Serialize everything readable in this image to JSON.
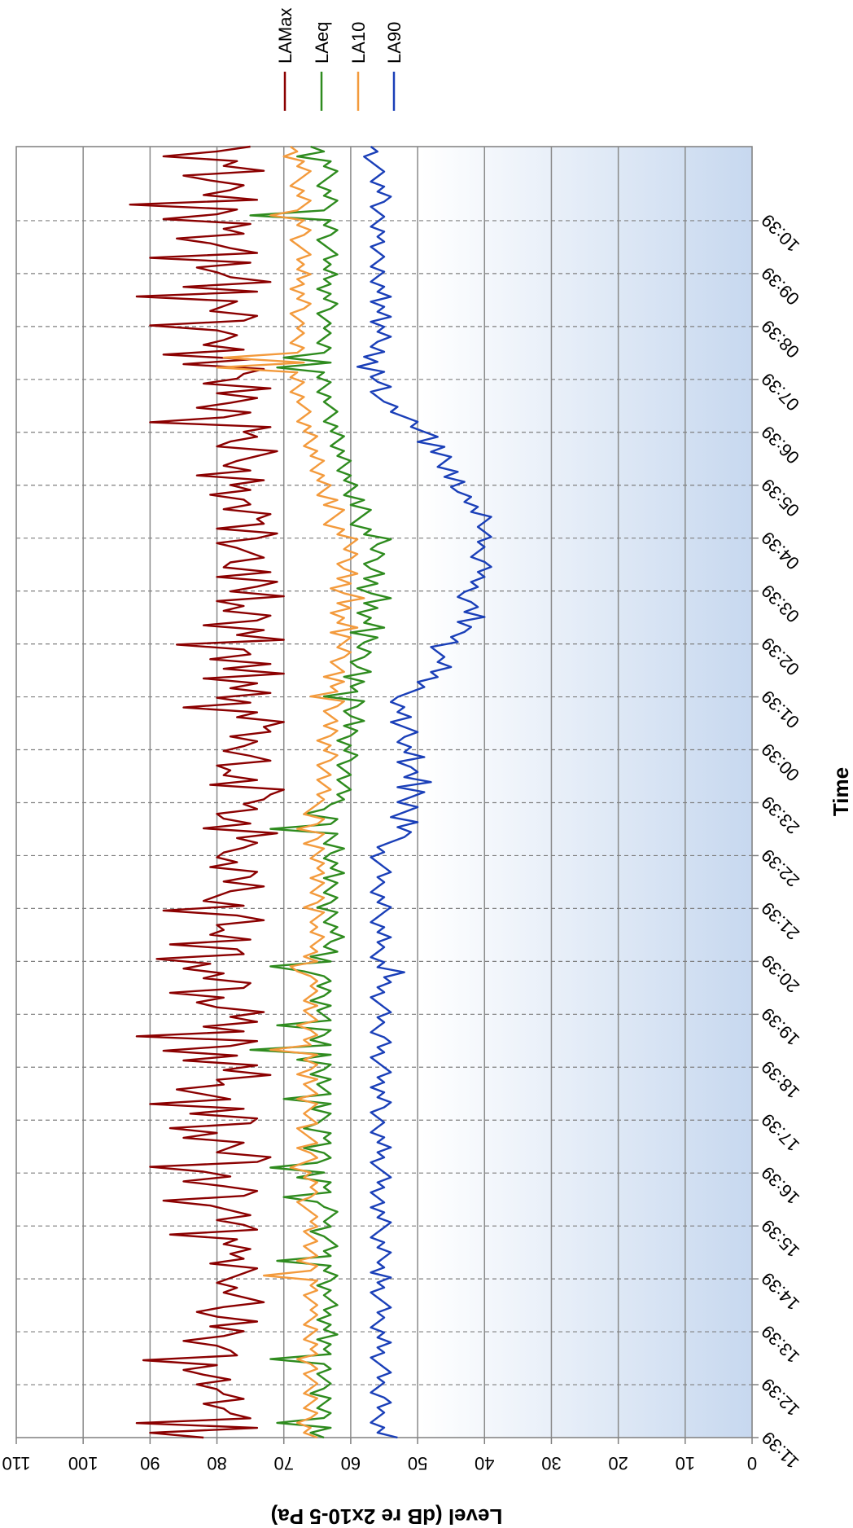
{
  "chart_data": {
    "type": "line",
    "orientation": "rotated-180",
    "xlabel": "Time",
    "ylabel": "Level (dB re 2x10-5 Pa)",
    "ylim": [
      0,
      110
    ],
    "yticks": [
      0,
      10,
      20,
      30,
      40,
      50,
      60,
      70,
      80,
      90,
      100,
      110
    ],
    "x_ticks": [
      "11:39",
      "12:39",
      "13:39",
      "14:39",
      "15:39",
      "16:39",
      "17:39",
      "18:39",
      "19:39",
      "20:39",
      "21:39",
      "22:39",
      "23:39",
      "00:39",
      "01:39",
      "02:39",
      "03:39",
      "04:39",
      "05:39",
      "06:39",
      "07:39",
      "08:39",
      "09:39",
      "10:39"
    ],
    "grid": true,
    "legend": "top-right",
    "series": [
      {
        "name": "LAMax",
        "color": "#8b0000",
        "values": [
          82,
          90,
          74,
          92,
          75,
          78,
          79,
          82,
          76,
          79,
          80,
          83,
          78,
          82,
          85,
          80,
          91,
          77,
          78,
          80,
          85,
          79,
          76,
          81,
          74,
          80,
          83,
          79,
          73,
          76,
          79,
          77,
          80,
          78,
          76,
          74,
          81,
          76,
          78,
          75,
          79,
          77,
          87,
          74,
          76,
          80,
          75,
          78,
          81,
          88,
          76,
          74,
          79,
          85,
          78,
          82,
          90,
          74,
          72,
          80,
          78,
          76,
          85,
          80,
          87,
          75,
          74,
          84,
          76,
          90,
          78,
          82,
          86,
          79,
          80,
          72,
          79,
          74,
          85,
          77,
          88,
          78,
          74,
          92,
          76,
          82,
          74,
          78,
          73,
          80,
          83,
          79,
          87,
          76,
          75,
          82,
          79,
          85,
          81,
          89,
          76,
          77,
          87,
          75,
          81,
          79,
          80,
          73,
          77,
          88,
          76,
          82,
          80,
          78,
          73,
          79,
          75,
          74,
          81,
          77,
          80,
          79,
          76,
          74,
          77,
          71,
          82,
          75,
          79,
          80,
          74,
          76,
          73,
          72,
          70,
          81,
          74,
          79,
          78,
          80,
          72,
          75,
          79,
          76,
          74,
          78,
          72,
          73,
          70,
          77,
          74,
          85,
          75,
          80,
          72,
          78,
          74,
          82,
          70,
          79,
          72,
          81,
          75,
          76,
          86,
          70,
          77,
          73,
          82,
          74,
          72,
          79,
          76,
          80,
          70,
          78,
          74,
          71,
          80,
          72,
          79,
          78,
          73,
          75,
          77,
          80,
          74,
          71,
          80,
          73,
          74,
          72,
          79,
          75,
          76,
          81,
          75,
          78,
          73,
          83,
          75,
          79,
          77,
          74,
          71,
          80,
          78,
          74,
          76,
          72,
          90,
          79,
          75,
          83,
          78,
          74,
          80,
          72,
          82,
          77,
          76,
          73,
          85,
          75,
          88,
          76,
          82,
          79,
          77,
          80,
          90,
          76,
          74,
          81,
          79,
          77,
          92,
          74,
          85,
          72,
          78,
          80,
          83,
          75,
          90,
          74,
          78,
          81,
          86,
          76,
          79,
          75,
          88,
          80,
          77,
          93,
          74,
          82,
          78,
          76,
          81,
          85,
          73,
          79,
          77,
          88,
          80,
          75
        ]
      },
      {
        "name": "LAeq",
        "color": "#2e8b1e",
        "values": [
          64,
          66,
          63,
          71,
          64,
          63,
          65,
          64,
          63,
          66,
          64,
          63,
          64,
          65,
          63,
          64,
          72,
          63,
          64,
          63,
          65,
          62,
          64,
          63,
          65,
          63,
          64,
          62,
          63,
          64,
          63,
          65,
          63,
          62,
          64,
          63,
          71,
          63,
          64,
          62,
          63,
          64,
          66,
          63,
          64,
          63,
          62,
          64,
          65,
          70,
          63,
          64,
          63,
          68,
          64,
          72,
          65,
          63,
          64,
          67,
          63,
          64,
          63,
          67,
          65,
          64,
          63,
          66,
          63,
          70,
          63,
          64,
          65,
          63,
          66,
          64,
          63,
          68,
          63,
          75,
          63,
          66,
          64,
          63,
          71,
          63,
          64,
          65,
          63,
          66,
          64,
          63,
          65,
          63,
          64,
          67,
          72,
          63,
          66,
          62,
          64,
          63,
          61,
          63,
          62,
          64,
          63,
          62,
          65,
          63,
          62,
          64,
          63,
          62,
          64,
          61,
          63,
          62,
          64,
          63,
          61,
          64,
          63,
          62,
          72,
          63,
          62,
          67,
          64,
          63,
          61,
          62,
          60,
          61,
          62,
          60,
          61,
          62,
          60,
          59,
          61,
          60,
          62,
          60,
          59,
          61,
          58,
          60,
          61,
          59,
          58,
          64,
          59,
          60,
          58,
          61,
          57,
          59,
          60,
          58,
          57,
          59,
          58,
          56,
          60,
          55,
          58,
          57,
          59,
          56,
          58,
          54,
          57,
          59,
          56,
          58,
          55,
          57,
          58,
          56,
          55,
          57,
          56,
          54,
          58,
          57,
          60,
          59,
          58,
          57,
          60,
          58,
          61,
          60,
          59,
          61,
          60,
          62,
          61,
          60,
          62,
          61,
          63,
          62,
          61,
          63,
          62,
          64,
          63,
          62,
          63,
          64,
          63,
          65,
          64,
          63,
          65,
          64,
          71,
          63,
          70,
          64,
          63,
          65,
          64,
          63,
          64,
          63,
          64,
          65,
          63,
          62,
          64,
          63,
          65,
          63,
          64,
          62,
          64,
          63,
          64,
          62,
          63,
          64,
          65,
          63,
          62,
          64,
          63,
          75,
          64,
          63,
          62,
          64,
          63,
          65,
          64,
          63,
          62,
          64,
          63,
          68,
          64,
          66
        ]
      },
      {
        "name": "LA10",
        "color": "#f39a3c",
        "values": [
          65,
          67,
          66,
          68,
          66,
          65,
          67,
          66,
          65,
          67,
          66,
          65,
          66,
          67,
          65,
          66,
          68,
          65,
          66,
          65,
          67,
          66,
          65,
          67,
          66,
          65,
          66,
          65,
          66,
          67,
          65,
          66,
          65,
          73,
          66,
          65,
          68,
          65,
          66,
          67,
          65,
          66,
          67,
          65,
          66,
          65,
          66,
          67,
          68,
          66,
          65,
          66,
          65,
          67,
          66,
          69,
          67,
          65,
          66,
          68,
          65,
          66,
          67,
          68,
          65,
          66,
          67,
          66,
          65,
          68,
          65,
          66,
          67,
          65,
          68,
          66,
          65,
          67,
          65,
          72,
          66,
          67,
          65,
          66,
          68,
          65,
          66,
          67,
          65,
          67,
          66,
          65,
          66,
          65,
          66,
          68,
          69,
          65,
          67,
          65,
          66,
          65,
          64,
          66,
          65,
          66,
          65,
          64,
          67,
          65,
          64,
          66,
          65,
          64,
          66,
          64,
          65,
          64,
          66,
          65,
          64,
          67,
          65,
          64,
          68,
          65,
          64,
          67,
          66,
          65,
          64,
          65,
          63,
          64,
          65,
          63,
          64,
          65,
          63,
          62,
          64,
          63,
          65,
          63,
          62,
          64,
          62,
          63,
          64,
          62,
          61,
          66,
          62,
          63,
          61,
          64,
          61,
          62,
          63,
          61,
          60,
          62,
          61,
          60,
          63,
          59,
          62,
          61,
          63,
          60,
          62,
          58,
          61,
          63,
          60,
          62,
          59,
          61,
          62,
          60,
          59,
          61,
          60,
          59,
          62,
          61,
          64,
          63,
          62,
          61,
          64,
          62,
          65,
          64,
          63,
          65,
          64,
          66,
          65,
          64,
          66,
          65,
          67,
          66,
          65,
          67,
          66,
          68,
          67,
          66,
          67,
          68,
          67,
          69,
          68,
          67,
          69,
          68,
          80,
          67,
          79,
          68,
          67,
          69,
          68,
          67,
          68,
          67,
          68,
          69,
          67,
          66,
          68,
          67,
          69,
          67,
          68,
          66,
          68,
          67,
          68,
          66,
          67,
          68,
          69,
          67,
          66,
          68,
          67,
          72,
          68,
          67,
          66,
          68,
          67,
          69,
          68,
          67,
          66,
          68,
          67,
          70,
          68,
          69
        ]
      },
      {
        "name": "LA90",
        "color": "#1a3fb8",
        "values": [
          53,
          56,
          55,
          57,
          56,
          55,
          56,
          54,
          55,
          57,
          56,
          55,
          56,
          54,
          55,
          56,
          57,
          55,
          56,
          54,
          56,
          55,
          57,
          56,
          55,
          56,
          54,
          55,
          56,
          57,
          55,
          56,
          54,
          57,
          55,
          56,
          55,
          54,
          56,
          55,
          57,
          56,
          55,
          54,
          56,
          55,
          57,
          55,
          56,
          57,
          55,
          56,
          54,
          55,
          56,
          57,
          55,
          56,
          54,
          56,
          55,
          57,
          56,
          55,
          56,
          57,
          55,
          54,
          56,
          55,
          57,
          55,
          56,
          54,
          55,
          56,
          57,
          55,
          56,
          54,
          55,
          57,
          56,
          55,
          56,
          54,
          55,
          56,
          57,
          55,
          56,
          54,
          55,
          52,
          56,
          55,
          57,
          56,
          55,
          56,
          54,
          56,
          55,
          57,
          56,
          55,
          54,
          56,
          55,
          57,
          56,
          55,
          56,
          54,
          55,
          56,
          57,
          55,
          56,
          54,
          52,
          51,
          53,
          50,
          54,
          52,
          50,
          53,
          51,
          49,
          53,
          48,
          52,
          50,
          51,
          53,
          49,
          52,
          51,
          53,
          52,
          50,
          52,
          54,
          51,
          53,
          52,
          54,
          53,
          51,
          49,
          50,
          47,
          48,
          45,
          47,
          46,
          47,
          48,
          44,
          45,
          43,
          42,
          44,
          40,
          43,
          41,
          42,
          44,
          43,
          41,
          42,
          40,
          41,
          39,
          40,
          42,
          41,
          40,
          41,
          39,
          40,
          41,
          40,
          39,
          42,
          41,
          43,
          42,
          44,
          45,
          43,
          46,
          44,
          47,
          46,
          45,
          48,
          46,
          50,
          47,
          49,
          51,
          50,
          52,
          54,
          53,
          55,
          56,
          57,
          54,
          56,
          57,
          55,
          59,
          56,
          58,
          55,
          57,
          56,
          54,
          56,
          55,
          57,
          54,
          56,
          55,
          57,
          54,
          56,
          55,
          57,
          56,
          55,
          57,
          56,
          55,
          56,
          57,
          55,
          56,
          55,
          57,
          56,
          55,
          56,
          57,
          55,
          54,
          56,
          55,
          57,
          56,
          55,
          56,
          57,
          58,
          56,
          57
        ]
      }
    ]
  }
}
